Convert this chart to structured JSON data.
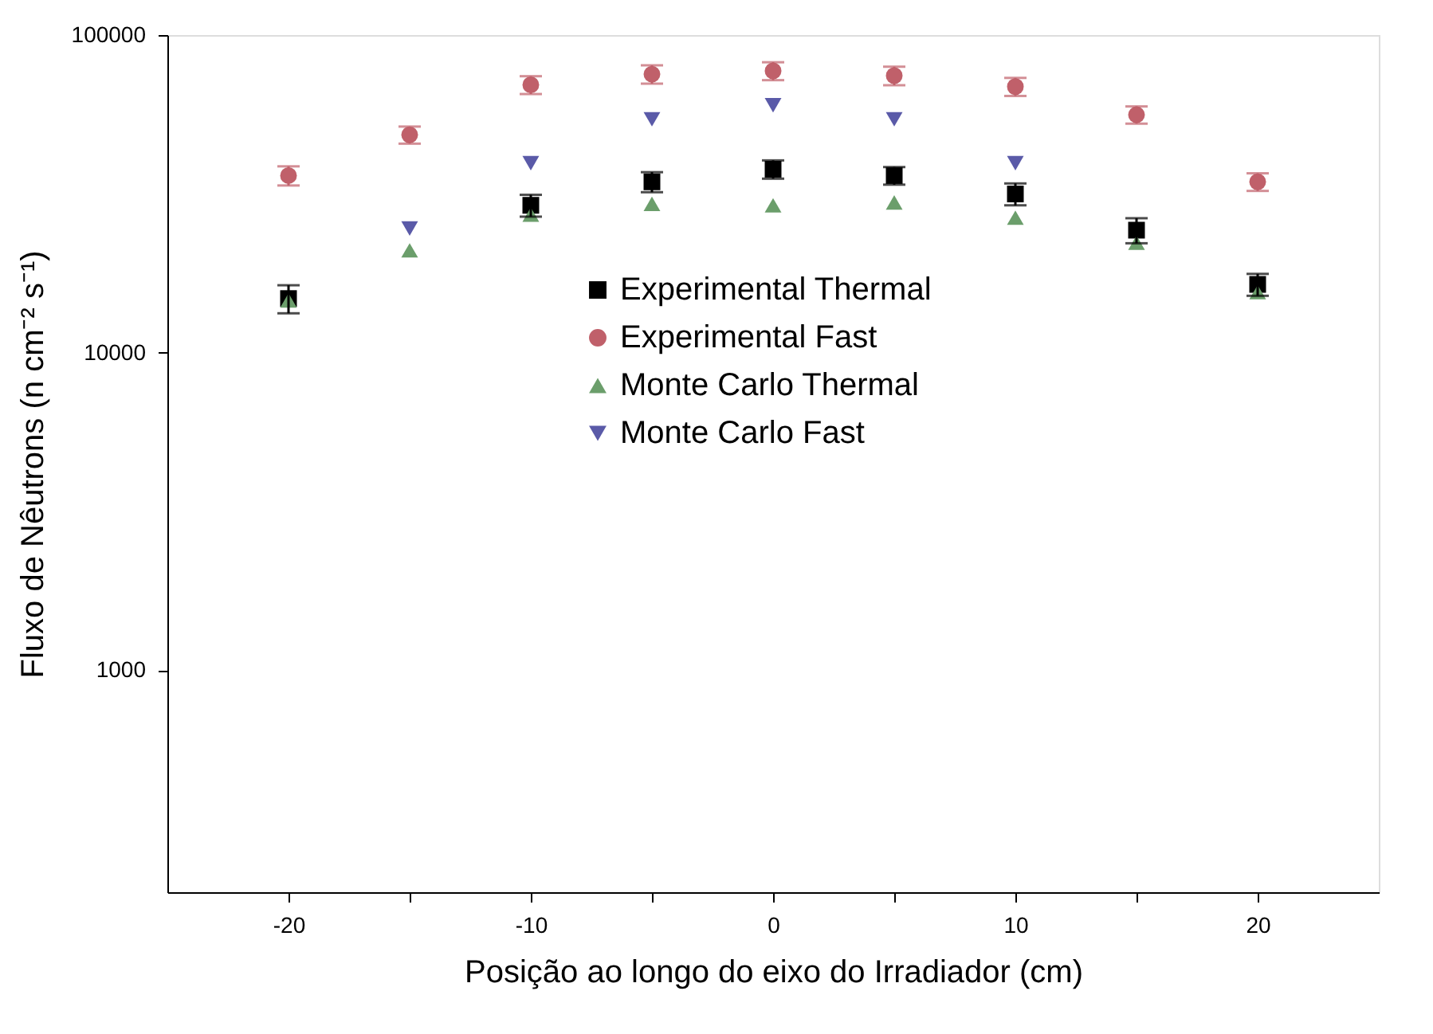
{
  "chart_data": {
    "type": "scatter",
    "xlabel": "Posição ao longo do eixo do Irradiador (cm)",
    "ylabel": "Fluxo de Nêutrons (n cm⁻² s⁻¹)",
    "x": [
      -20,
      -15,
      -10,
      -5,
      0,
      5,
      10,
      15,
      20
    ],
    "series": [
      {
        "name": "Experimental Thermal",
        "color": "#000000",
        "marker": "square",
        "values": [
          14800,
          null,
          29100,
          34500,
          37800,
          36100,
          31600,
          24300,
          16400
        ],
        "errors": [
          1500,
          null,
          2300,
          2500,
          2500,
          2300,
          2500,
          2200,
          1300
        ]
      },
      {
        "name": "Experimental Fast",
        "color": "#c0606a",
        "marker": "circle",
        "values": [
          36100,
          48500,
          69700,
          75300,
          77100,
          74500,
          68800,
          56100,
          34500
        ],
        "errors": [
          2500,
          3000,
          4500,
          5000,
          5000,
          5000,
          4500,
          3500,
          2200
        ]
      },
      {
        "name": "Monte Carlo  Thermal",
        "color": "#6b9e6b",
        "marker": "triangle",
        "values": [
          14600,
          21000,
          27200,
          29400,
          29100,
          29700,
          26600,
          22200,
          15500
        ]
      },
      {
        "name": "Monte Carlo  Fast",
        "color": "#5a5aa8",
        "marker": "triangle-down",
        "values": [
          null,
          24600,
          39500,
          54300,
          60100,
          54300,
          39500,
          null,
          null
        ]
      }
    ],
    "log": "y",
    "xlim": [
      -25,
      25
    ],
    "xticks": [
      -20,
      {
        "value": -15,
        "label": null
      },
      -10,
      {
        "value": -5,
        "label": null
      },
      0,
      {
        "value": 5,
        "label": null
      },
      10,
      {
        "value": 15,
        "label": null
      },
      20
    ],
    "ylim": [
      200,
      100000
    ],
    "yticks": [
      1000,
      10000,
      100000
    ],
    "grid": false,
    "legend": "top"
  }
}
